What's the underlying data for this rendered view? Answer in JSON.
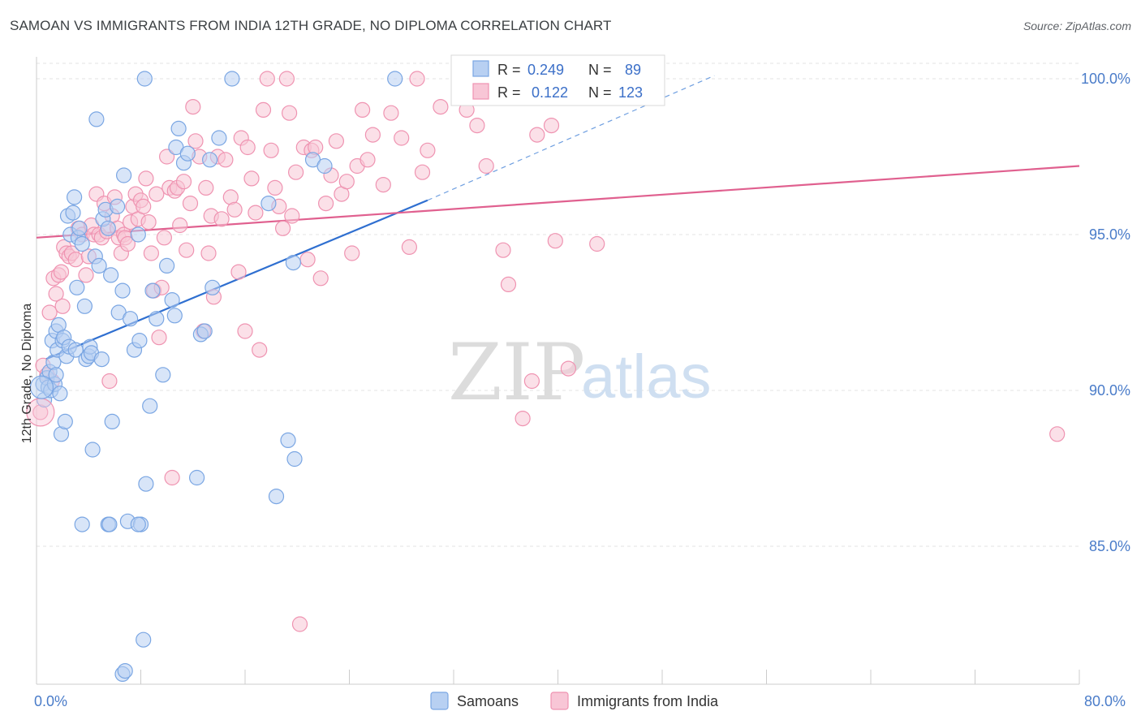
{
  "title": "SAMOAN VS IMMIGRANTS FROM INDIA 12TH GRADE, NO DIPLOMA CORRELATION CHART",
  "source": "Source: ZipAtlas.com",
  "watermark": {
    "zip": "ZIP",
    "atlas": "atlas"
  },
  "colors": {
    "blue": "#7aa6e3",
    "blue_fill": "#b8d0f2",
    "pink": "#ef93b1",
    "pink_fill": "#f8c6d6",
    "blue_line": "#2f6fd0",
    "pink_line": "#e0608f"
  },
  "legend": {
    "rows": [
      {
        "r_label": "R = ",
        "r_value": "0.249",
        "n_label": "N = ",
        "n_value": "89"
      },
      {
        "r_label": "R = ",
        "r_value": "0.122",
        "n_label": "N = ",
        "n_value": "123"
      }
    ]
  },
  "chart_data": {
    "type": "scatter",
    "title": "SAMOAN VS IMMIGRANTS FROM INDIA 12TH GRADE, NO DIPLOMA CORRELATION CHART",
    "xlabel": "",
    "ylabel": "12th Grade, No Diploma",
    "xlim": [
      0,
      80
    ],
    "ylim": [
      80.5,
      100.5
    ],
    "x_tick_labels": [
      "0.0%",
      "80.0%"
    ],
    "y_ticks": [
      85,
      90,
      95,
      100
    ],
    "y_tick_labels": [
      "85.0%",
      "90.0%",
      "95.0%",
      "100.0%"
    ],
    "grid": true,
    "legend_position": "top-center",
    "series": [
      {
        "name": "Samoans",
        "color": "#7aa6e3",
        "R": 0.249,
        "N": 89,
        "trend": {
          "x0": 0.7,
          "y0": 91.0,
          "x1": 30.0,
          "y1": 96.1,
          "dash_to_x": 52,
          "dash_to_y": 100.1
        },
        "points": [
          [
            0.5,
            90.2
          ],
          [
            0.6,
            89.7
          ],
          [
            0.8,
            90.4
          ],
          [
            0.9,
            90.1
          ],
          [
            1.0,
            90.6
          ],
          [
            1.1,
            90.0
          ],
          [
            1.2,
            91.6
          ],
          [
            1.3,
            90.9
          ],
          [
            1.4,
            90.2
          ],
          [
            1.5,
            91.9
          ],
          [
            1.5,
            90.5
          ],
          [
            1.6,
            91.3
          ],
          [
            1.7,
            92.1
          ],
          [
            1.8,
            89.9
          ],
          [
            1.9,
            88.6
          ],
          [
            2.0,
            91.6
          ],
          [
            2.1,
            91.7
          ],
          [
            2.2,
            89.0
          ],
          [
            2.3,
            91.1
          ],
          [
            2.4,
            95.6
          ],
          [
            2.5,
            91.4
          ],
          [
            2.6,
            95.0
          ],
          [
            2.8,
            95.7
          ],
          [
            2.9,
            96.2
          ],
          [
            3.0,
            91.3
          ],
          [
            3.1,
            93.3
          ],
          [
            3.2,
            94.9
          ],
          [
            3.3,
            95.2
          ],
          [
            3.5,
            94.7
          ],
          [
            3.7,
            92.7
          ],
          [
            3.8,
            91.0
          ],
          [
            4.0,
            91.1
          ],
          [
            4.1,
            91.4
          ],
          [
            4.2,
            91.2
          ],
          [
            4.3,
            88.1
          ],
          [
            4.5,
            94.3
          ],
          [
            4.6,
            98.7
          ],
          [
            4.8,
            94.0
          ],
          [
            5.0,
            91.0
          ],
          [
            5.1,
            95.5
          ],
          [
            5.3,
            95.8
          ],
          [
            5.5,
            95.2
          ],
          [
            5.5,
            85.7
          ],
          [
            5.7,
            93.7
          ],
          [
            5.8,
            89.0
          ],
          [
            6.2,
            95.9
          ],
          [
            6.3,
            92.5
          ],
          [
            6.6,
            93.2
          ],
          [
            6.7,
            96.9
          ],
          [
            7.0,
            85.8
          ],
          [
            7.2,
            92.3
          ],
          [
            7.5,
            91.3
          ],
          [
            7.8,
            95.0
          ],
          [
            7.9,
            91.6
          ],
          [
            8.0,
            85.7
          ],
          [
            8.2,
            82.0
          ],
          [
            8.3,
            100.0
          ],
          [
            8.4,
            87.0
          ],
          [
            8.7,
            89.5
          ],
          [
            8.9,
            93.2
          ],
          [
            9.2,
            92.3
          ],
          [
            9.7,
            90.5
          ],
          [
            10.0,
            94.0
          ],
          [
            10.4,
            92.9
          ],
          [
            10.6,
            92.4
          ],
          [
            10.7,
            97.8
          ],
          [
            10.9,
            98.4
          ],
          [
            11.3,
            97.3
          ],
          [
            11.6,
            97.6
          ],
          [
            12.3,
            87.2
          ],
          [
            12.6,
            91.8
          ],
          [
            12.9,
            91.9
          ],
          [
            13.3,
            97.4
          ],
          [
            13.5,
            93.3
          ],
          [
            14.0,
            98.1
          ],
          [
            15.0,
            100.0
          ],
          [
            17.8,
            96.0
          ],
          [
            18.4,
            86.6
          ],
          [
            19.3,
            88.4
          ],
          [
            19.7,
            94.1
          ],
          [
            19.8,
            87.8
          ],
          [
            21.2,
            97.4
          ],
          [
            22.1,
            97.2
          ],
          [
            27.5,
            100.0
          ],
          [
            6.6,
            80.9
          ],
          [
            6.8,
            81.0
          ],
          [
            7.8,
            85.7
          ],
          [
            5.6,
            85.7
          ],
          [
            3.5,
            85.7
          ]
        ]
      },
      {
        "name": "Immigrants from India",
        "color": "#ef93b1",
        "R": 0.122,
        "N": 123,
        "trend": {
          "x0": 0.0,
          "y0": 94.9,
          "x1": 80.0,
          "y1": 97.2
        },
        "points": [
          [
            0.3,
            89.3
          ],
          [
            0.5,
            90.8
          ],
          [
            0.8,
            90.5
          ],
          [
            1.0,
            92.5
          ],
          [
            1.2,
            90.3
          ],
          [
            1.3,
            93.6
          ],
          [
            1.5,
            93.1
          ],
          [
            1.7,
            93.7
          ],
          [
            1.9,
            93.8
          ],
          [
            2.0,
            92.7
          ],
          [
            2.1,
            94.6
          ],
          [
            2.3,
            94.4
          ],
          [
            2.5,
            94.3
          ],
          [
            2.7,
            94.4
          ],
          [
            3.0,
            94.2
          ],
          [
            3.2,
            95.2
          ],
          [
            3.5,
            95.0
          ],
          [
            3.8,
            93.7
          ],
          [
            4.0,
            94.3
          ],
          [
            4.2,
            95.3
          ],
          [
            4.4,
            95.0
          ],
          [
            4.6,
            96.3
          ],
          [
            4.8,
            95.0
          ],
          [
            5.0,
            94.9
          ],
          [
            5.2,
            96.0
          ],
          [
            5.4,
            95.1
          ],
          [
            5.6,
            90.3
          ],
          [
            5.8,
            95.6
          ],
          [
            6.0,
            96.2
          ],
          [
            6.2,
            95.2
          ],
          [
            6.3,
            94.9
          ],
          [
            6.5,
            94.4
          ],
          [
            6.7,
            95.0
          ],
          [
            6.8,
            94.9
          ],
          [
            7.0,
            94.7
          ],
          [
            7.2,
            95.4
          ],
          [
            7.4,
            95.9
          ],
          [
            7.6,
            96.3
          ],
          [
            7.8,
            95.5
          ],
          [
            8.0,
            96.1
          ],
          [
            8.2,
            95.9
          ],
          [
            8.4,
            96.8
          ],
          [
            8.6,
            95.4
          ],
          [
            8.8,
            94.4
          ],
          [
            9.0,
            93.2
          ],
          [
            9.2,
            96.3
          ],
          [
            9.4,
            91.7
          ],
          [
            9.6,
            93.3
          ],
          [
            9.8,
            94.9
          ],
          [
            10.0,
            97.5
          ],
          [
            10.2,
            96.5
          ],
          [
            10.4,
            87.2
          ],
          [
            10.6,
            96.4
          ],
          [
            10.8,
            96.5
          ],
          [
            11.0,
            95.3
          ],
          [
            11.3,
            96.7
          ],
          [
            11.5,
            94.5
          ],
          [
            11.8,
            96.0
          ],
          [
            12.0,
            99.1
          ],
          [
            12.2,
            98.0
          ],
          [
            12.5,
            97.5
          ],
          [
            12.8,
            91.9
          ],
          [
            13.0,
            96.5
          ],
          [
            13.2,
            94.4
          ],
          [
            13.4,
            95.6
          ],
          [
            13.6,
            93.0
          ],
          [
            13.9,
            97.5
          ],
          [
            14.2,
            95.5
          ],
          [
            14.5,
            97.4
          ],
          [
            14.9,
            96.2
          ],
          [
            15.2,
            95.8
          ],
          [
            15.5,
            93.8
          ],
          [
            15.7,
            98.1
          ],
          [
            16.0,
            91.9
          ],
          [
            16.2,
            97.8
          ],
          [
            16.5,
            96.8
          ],
          [
            16.8,
            95.7
          ],
          [
            17.1,
            91.3
          ],
          [
            17.4,
            99.0
          ],
          [
            17.7,
            100.0
          ],
          [
            18.0,
            97.7
          ],
          [
            18.3,
            96.5
          ],
          [
            18.6,
            95.9
          ],
          [
            18.9,
            95.2
          ],
          [
            19.2,
            100.0
          ],
          [
            19.4,
            98.9
          ],
          [
            19.6,
            95.6
          ],
          [
            19.9,
            97.0
          ],
          [
            20.2,
            82.5
          ],
          [
            20.5,
            97.8
          ],
          [
            20.8,
            94.2
          ],
          [
            21.1,
            97.7
          ],
          [
            21.4,
            97.8
          ],
          [
            21.8,
            93.6
          ],
          [
            22.2,
            96.0
          ],
          [
            22.6,
            96.9
          ],
          [
            23.0,
            98.0
          ],
          [
            23.4,
            96.3
          ],
          [
            23.8,
            96.7
          ],
          [
            24.2,
            94.4
          ],
          [
            24.6,
            97.2
          ],
          [
            25.0,
            99.0
          ],
          [
            25.4,
            97.4
          ],
          [
            25.8,
            98.2
          ],
          [
            26.6,
            96.6
          ],
          [
            27.2,
            98.9
          ],
          [
            28.0,
            98.1
          ],
          [
            28.6,
            94.6
          ],
          [
            29.2,
            100.0
          ],
          [
            29.6,
            97.0
          ],
          [
            30.0,
            97.7
          ],
          [
            31.0,
            99.1
          ],
          [
            33.0,
            99.0
          ],
          [
            33.8,
            98.5
          ],
          [
            34.5,
            97.2
          ],
          [
            35.8,
            94.5
          ],
          [
            36.2,
            93.4
          ],
          [
            37.3,
            89.1
          ],
          [
            38.0,
            90.3
          ],
          [
            38.4,
            98.2
          ],
          [
            39.5,
            98.5
          ],
          [
            39.8,
            94.8
          ],
          [
            40.8,
            90.7
          ],
          [
            43.0,
            94.7
          ],
          [
            78.3,
            88.6
          ]
        ]
      }
    ]
  },
  "axes": {
    "y_label": "12th Grade, No Diploma",
    "x_min_label": "0.0%",
    "x_max_label": "80.0%"
  },
  "bottom_legend": {
    "series1": "Samoans",
    "series2": "Immigrants from India"
  }
}
